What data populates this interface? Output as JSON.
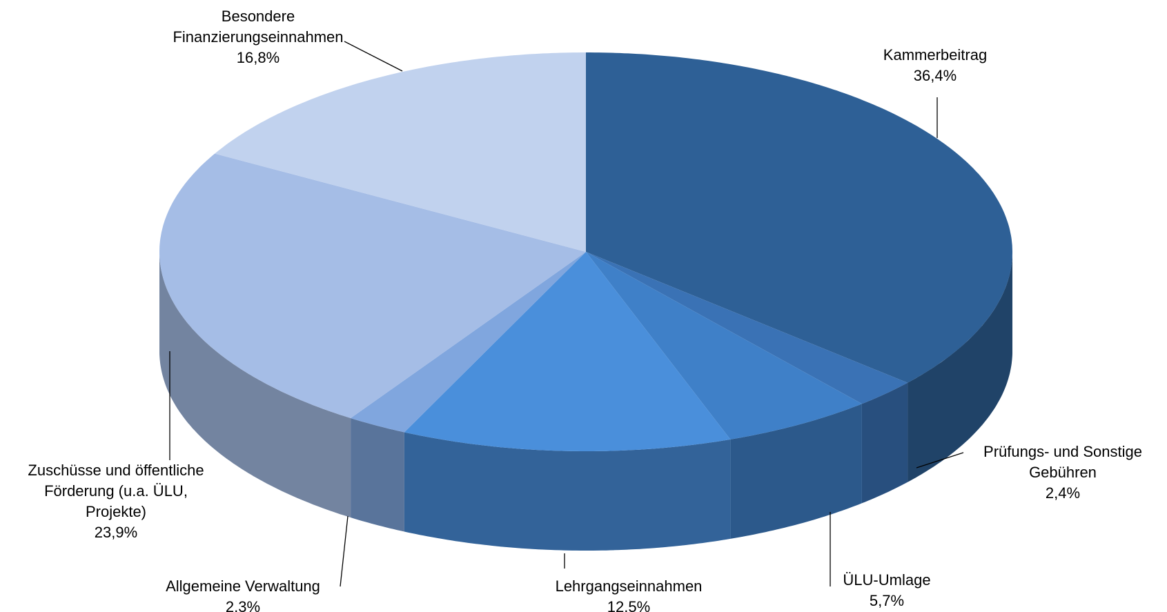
{
  "chart_data": {
    "type": "pie",
    "categories": [
      "Kammerbeitrag",
      "Prüfungs- und Sonstige Gebühren",
      "ÜLU-Umlage",
      "Lehrgangseinnahmen",
      "Allgemeine Verwaltung",
      "Zuschüsse und öffentliche Förderung (u.a. ÜLU, Projekte)",
      "Besondere Finanzierungseinnahmen"
    ],
    "values": [
      36.4,
      2.4,
      5.7,
      12.5,
      2.3,
      23.9,
      16.8
    ],
    "value_labels": [
      "36,4%",
      "2,4%",
      "5,7%",
      "12,5%",
      "2,3%",
      "23,9%",
      "16,8%"
    ],
    "colors": [
      "#2e6096",
      "#3a72b5",
      "#3f80c8",
      "#4a8fdb",
      "#80a6de",
      "#a5bde6",
      "#c1d2ee"
    ]
  }
}
